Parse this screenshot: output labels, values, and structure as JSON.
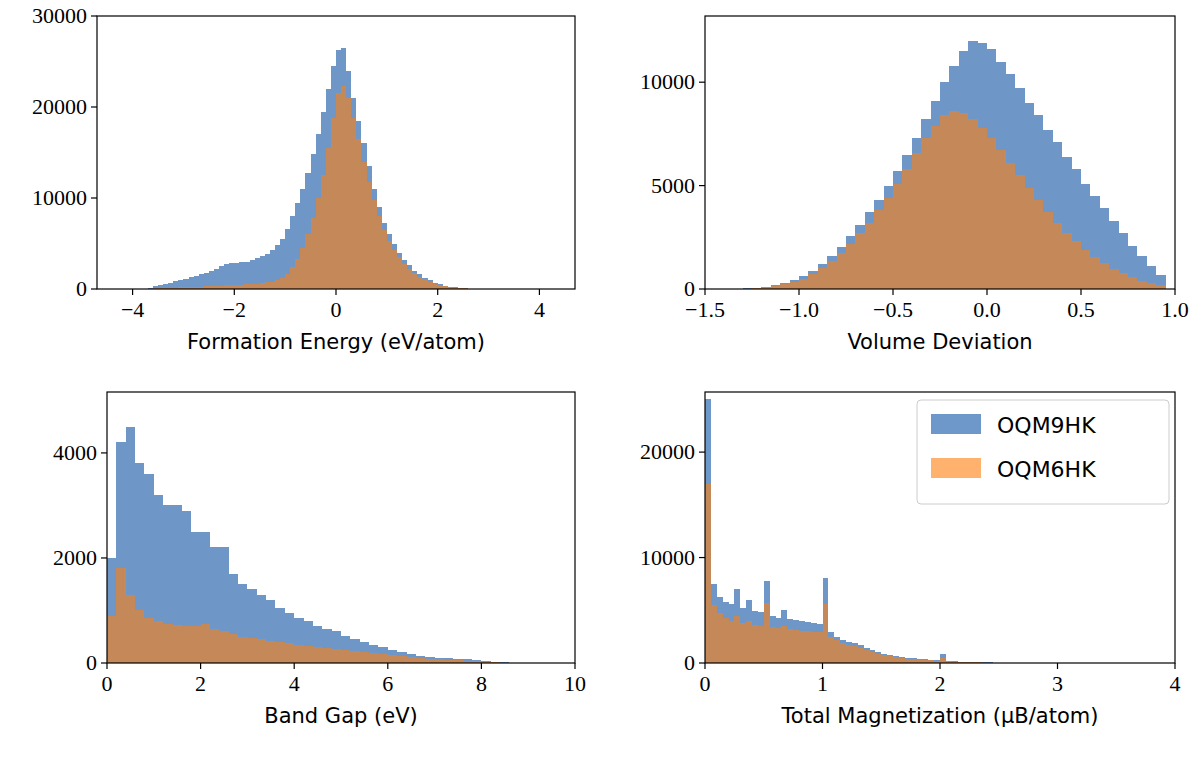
{
  "chart_data": [
    {
      "type": "histogram",
      "x_label": "Formation Energy (eV/atom)",
      "grid": false,
      "xlim": [
        -4.7,
        4.7
      ],
      "xticks": [
        {
          "value": -4,
          "label": "−4"
        },
        {
          "value": -2,
          "label": "−2"
        },
        0,
        2,
        4
      ],
      "ylim": [
        0,
        30000
      ],
      "yticks": [
        0,
        10000,
        20000,
        30000
      ],
      "bins": [
        -3.8,
        -3.7,
        -3.6,
        -3.5,
        -3.4,
        -3.3,
        -3.2,
        -3.1,
        -3.0,
        -2.9,
        -2.8,
        -2.7,
        -2.6,
        -2.5,
        -2.4,
        -2.3,
        -2.2,
        -2.1,
        -2.0,
        -1.9,
        -1.8,
        -1.7,
        -1.6,
        -1.5,
        -1.4,
        -1.3,
        -1.2,
        -1.1,
        -1.0,
        -0.9,
        -0.8,
        -0.7,
        -0.6,
        -0.5,
        -0.4,
        -0.3,
        -0.2,
        -0.1,
        0.0,
        0.1,
        0.2,
        0.3,
        0.4,
        0.5,
        0.6,
        0.7,
        0.8,
        0.9,
        1.0,
        1.1,
        1.2,
        1.3,
        1.4,
        1.5,
        1.6,
        1.7,
        1.8,
        1.9,
        2.0,
        2.1,
        2.2,
        2.3,
        2.4,
        2.5,
        2.6,
        2.7,
        2.8,
        2.9,
        3.0
      ],
      "series": [
        {
          "name": "OQM9HK",
          "color": "#4a7ebb",
          "values": [
            50,
            150,
            300,
            450,
            550,
            700,
            850,
            1000,
            1150,
            1300,
            1450,
            1600,
            1800,
            2000,
            2250,
            2500,
            2700,
            2850,
            2900,
            2950,
            3000,
            3200,
            3400,
            3600,
            3900,
            4300,
            4800,
            5500,
            6600,
            8000,
            9500,
            11000,
            12800,
            14800,
            17000,
            19500,
            22000,
            24500,
            26300,
            26500,
            24000,
            21000,
            18500,
            16000,
            13500,
            11000,
            9000,
            7300,
            6000,
            4900,
            4000,
            3200,
            2600,
            2000,
            1600,
            1250,
            950,
            700,
            500,
            350,
            250,
            170,
            110,
            70,
            40,
            25,
            15,
            8
          ]
        },
        {
          "name": "OQM6HK",
          "color": "#ff7f0e",
          "values": [
            10,
            30,
            60,
            90,
            110,
            130,
            150,
            170,
            190,
            210,
            230,
            250,
            280,
            310,
            340,
            370,
            400,
            430,
            460,
            490,
            520,
            560,
            600,
            650,
            720,
            820,
            980,
            1250,
            1700,
            2400,
            3300,
            4500,
            6000,
            7800,
            10000,
            12500,
            15500,
            18800,
            21500,
            22300,
            21000,
            18800,
            16500,
            14000,
            11800,
            9800,
            8000,
            6500,
            5300,
            4300,
            3500,
            2800,
            2200,
            1750,
            1350,
            1050,
            780,
            570,
            410,
            290,
            200,
            140,
            90,
            55,
            32,
            20,
            12,
            6
          ]
        }
      ]
    },
    {
      "type": "histogram",
      "x_label": "Volume Deviation",
      "grid": false,
      "xlim": [
        -1.5,
        1.0
      ],
      "xticks": [
        {
          "value": -1.5,
          "label": "−1.5"
        },
        {
          "value": -1.0,
          "label": "−1.0"
        },
        {
          "value": -0.5,
          "label": "−0.5"
        },
        {
          "value": 0.0,
          "label": "0.0"
        },
        0.5,
        {
          "value": 1.0,
          "label": "1.0"
        }
      ],
      "ylim": [
        0,
        13200
      ],
      "yticks": [
        0,
        5000,
        10000
      ],
      "bins": [
        -1.3,
        -1.25,
        -1.2,
        -1.15,
        -1.1,
        -1.05,
        -1.0,
        -0.95,
        -0.9,
        -0.85,
        -0.8,
        -0.75,
        -0.7,
        -0.65,
        -0.6,
        -0.55,
        -0.5,
        -0.45,
        -0.4,
        -0.35,
        -0.3,
        -0.25,
        -0.2,
        -0.15,
        -0.1,
        -0.05,
        0.0,
        0.05,
        0.1,
        0.15,
        0.2,
        0.25,
        0.3,
        0.35,
        0.4,
        0.45,
        0.5,
        0.55,
        0.6,
        0.65,
        0.7,
        0.75,
        0.8,
        0.85,
        0.9,
        0.95
      ],
      "series": [
        {
          "name": "OQM9HK",
          "color": "#4a7ebb",
          "values": [
            30,
            60,
            110,
            180,
            280,
            420,
            620,
            880,
            1200,
            1600,
            2050,
            2550,
            3100,
            3700,
            4300,
            5000,
            5700,
            6500,
            7300,
            8200,
            9100,
            10000,
            10800,
            11500,
            12000,
            11900,
            11600,
            11000,
            10400,
            9700,
            9000,
            8400,
            7700,
            7100,
            6400,
            5800,
            5100,
            4500,
            3900,
            3300,
            2700,
            2100,
            1600,
            1100,
            700
          ]
        },
        {
          "name": "OQM6HK",
          "color": "#ff7f0e",
          "values": [
            20,
            40,
            80,
            140,
            220,
            340,
            500,
            720,
            1000,
            1350,
            1750,
            2200,
            2700,
            3200,
            3800,
            4400,
            5100,
            5800,
            6600,
            7300,
            7900,
            8400,
            8600,
            8500,
            8200,
            7800,
            7300,
            6700,
            6100,
            5500,
            4900,
            4300,
            3700,
            3200,
            2700,
            2300,
            1900,
            1550,
            1250,
            980,
            750,
            560,
            400,
            280,
            180
          ]
        }
      ]
    },
    {
      "type": "histogram",
      "x_label": "Band Gap (eV)",
      "grid": false,
      "xlim": [
        0,
        10
      ],
      "xticks": [
        0,
        2,
        4,
        6,
        8,
        10
      ],
      "ylim": [
        0,
        5160
      ],
      "yticks": [
        0,
        2000,
        4000
      ],
      "bins": [
        0,
        0.2,
        0.4,
        0.6,
        0.8,
        1.0,
        1.2,
        1.4,
        1.6,
        1.8,
        2.0,
        2.2,
        2.4,
        2.6,
        2.8,
        3.0,
        3.2,
        3.4,
        3.6,
        3.8,
        4.0,
        4.2,
        4.4,
        4.6,
        4.8,
        5.0,
        5.2,
        5.4,
        5.6,
        5.8,
        6.0,
        6.2,
        6.4,
        6.6,
        6.8,
        7.0,
        7.2,
        7.4,
        7.6,
        7.8,
        8.0,
        8.2,
        8.4,
        8.6
      ],
      "series": [
        {
          "name": "OQM9HK",
          "color": "#4a7ebb",
          "values": [
            2000,
            4200,
            4500,
            3800,
            3600,
            3200,
            3000,
            3000,
            2900,
            2500,
            2500,
            2200,
            2200,
            1700,
            1500,
            1400,
            1300,
            1200,
            1050,
            950,
            850,
            800,
            700,
            650,
            600,
            520,
            450,
            400,
            350,
            300,
            250,
            200,
            170,
            140,
            120,
            100,
            90,
            80,
            70,
            60,
            40,
            20,
            10
          ]
        },
        {
          "name": "OQM6HK",
          "color": "#ff7f0e",
          "values": [
            900,
            1800,
            1300,
            1000,
            850,
            800,
            750,
            720,
            700,
            700,
            750,
            650,
            600,
            550,
            500,
            480,
            450,
            420,
            400,
            380,
            350,
            330,
            310,
            290,
            270,
            250,
            230,
            210,
            190,
            170,
            150,
            130,
            110,
            95,
            80,
            70,
            60,
            50,
            40,
            35,
            25,
            15,
            8
          ]
        }
      ]
    },
    {
      "type": "histogram",
      "x_label": "Total Magnetization (μB/atom)",
      "grid": false,
      "legend": "upper right",
      "xlim": [
        0,
        4
      ],
      "xticks": [
        0,
        1,
        2,
        3,
        4
      ],
      "ylim": [
        0,
        25700
      ],
      "yticks": [
        0,
        10000,
        20000
      ],
      "bins": [
        0,
        0.05,
        0.1,
        0.15,
        0.2,
        0.25,
        0.3,
        0.35,
        0.4,
        0.45,
        0.5,
        0.55,
        0.6,
        0.65,
        0.7,
        0.75,
        0.8,
        0.85,
        0.9,
        0.95,
        1.0,
        1.05,
        1.1,
        1.15,
        1.2,
        1.25,
        1.3,
        1.35,
        1.4,
        1.45,
        1.5,
        1.55,
        1.6,
        1.65,
        1.7,
        1.75,
        1.8,
        1.85,
        1.9,
        1.95,
        2.0,
        2.05,
        2.1,
        2.15,
        2.2,
        2.25,
        2.3,
        2.35,
        2.4,
        2.45,
        2.5
      ],
      "series": [
        {
          "name": "OQM9HK",
          "color": "#4a7ebb",
          "values": [
            25000,
            7500,
            6300,
            5800,
            5600,
            7000,
            5200,
            6000,
            4900,
            4800,
            7800,
            4500,
            4300,
            5000,
            4200,
            4100,
            4000,
            3900,
            3800,
            3700,
            8100,
            2900,
            2500,
            2200,
            2000,
            1900,
            1700,
            1400,
            1200,
            1000,
            900,
            800,
            700,
            600,
            500,
            450,
            400,
            350,
            300,
            250,
            900,
            200,
            150,
            130,
            110,
            90,
            80,
            60,
            50,
            40
          ]
        },
        {
          "name": "OQM6HK",
          "color": "#ff7f0e",
          "values": [
            17000,
            5500,
            4700,
            4300,
            4000,
            4500,
            3800,
            4000,
            3600,
            3500,
            5700,
            3400,
            3300,
            3500,
            3200,
            3100,
            3000,
            3000,
            2900,
            2900,
            5600,
            2500,
            2200,
            1900,
            1700,
            1600,
            1400,
            1200,
            1000,
            850,
            750,
            650,
            550,
            480,
            420,
            370,
            330,
            290,
            250,
            210,
            500,
            160,
            120,
            100,
            85,
            70,
            60,
            45,
            35,
            30
          ]
        }
      ]
    }
  ]
}
